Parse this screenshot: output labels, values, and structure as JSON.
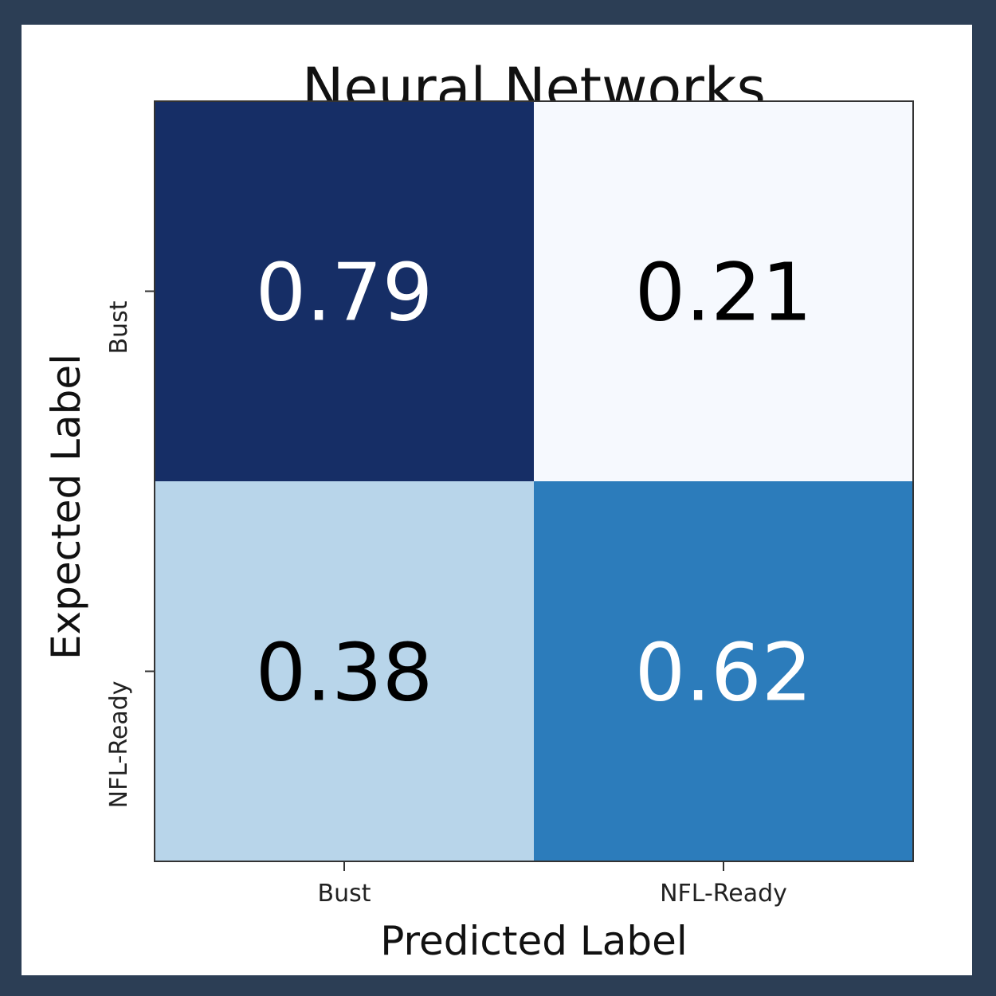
{
  "chart_data": {
    "type": "heatmap",
    "title": "Neural Networks",
    "xlabel": "Predicted Label",
    "ylabel": "Expected Label",
    "x_categories": [
      "Bust",
      "NFL-Ready"
    ],
    "y_categories": [
      "Bust",
      "NFL-Ready"
    ],
    "values": [
      [
        0.79,
        0.21
      ],
      [
        0.38,
        0.62
      ]
    ],
    "value_labels": [
      [
        "0.79",
        "0.21"
      ],
      [
        "0.38",
        "0.62"
      ]
    ],
    "colormap": "Blues",
    "color_range": [
      0.21,
      0.79
    ],
    "colors": {
      "cell_dark": "#162e66",
      "cell_light": "#f6f9fe",
      "text_on_dark": "#ffffff",
      "text_on_light": "#000000",
      "axes_border": "#333333",
      "page_border": "#2c3e55"
    }
  }
}
